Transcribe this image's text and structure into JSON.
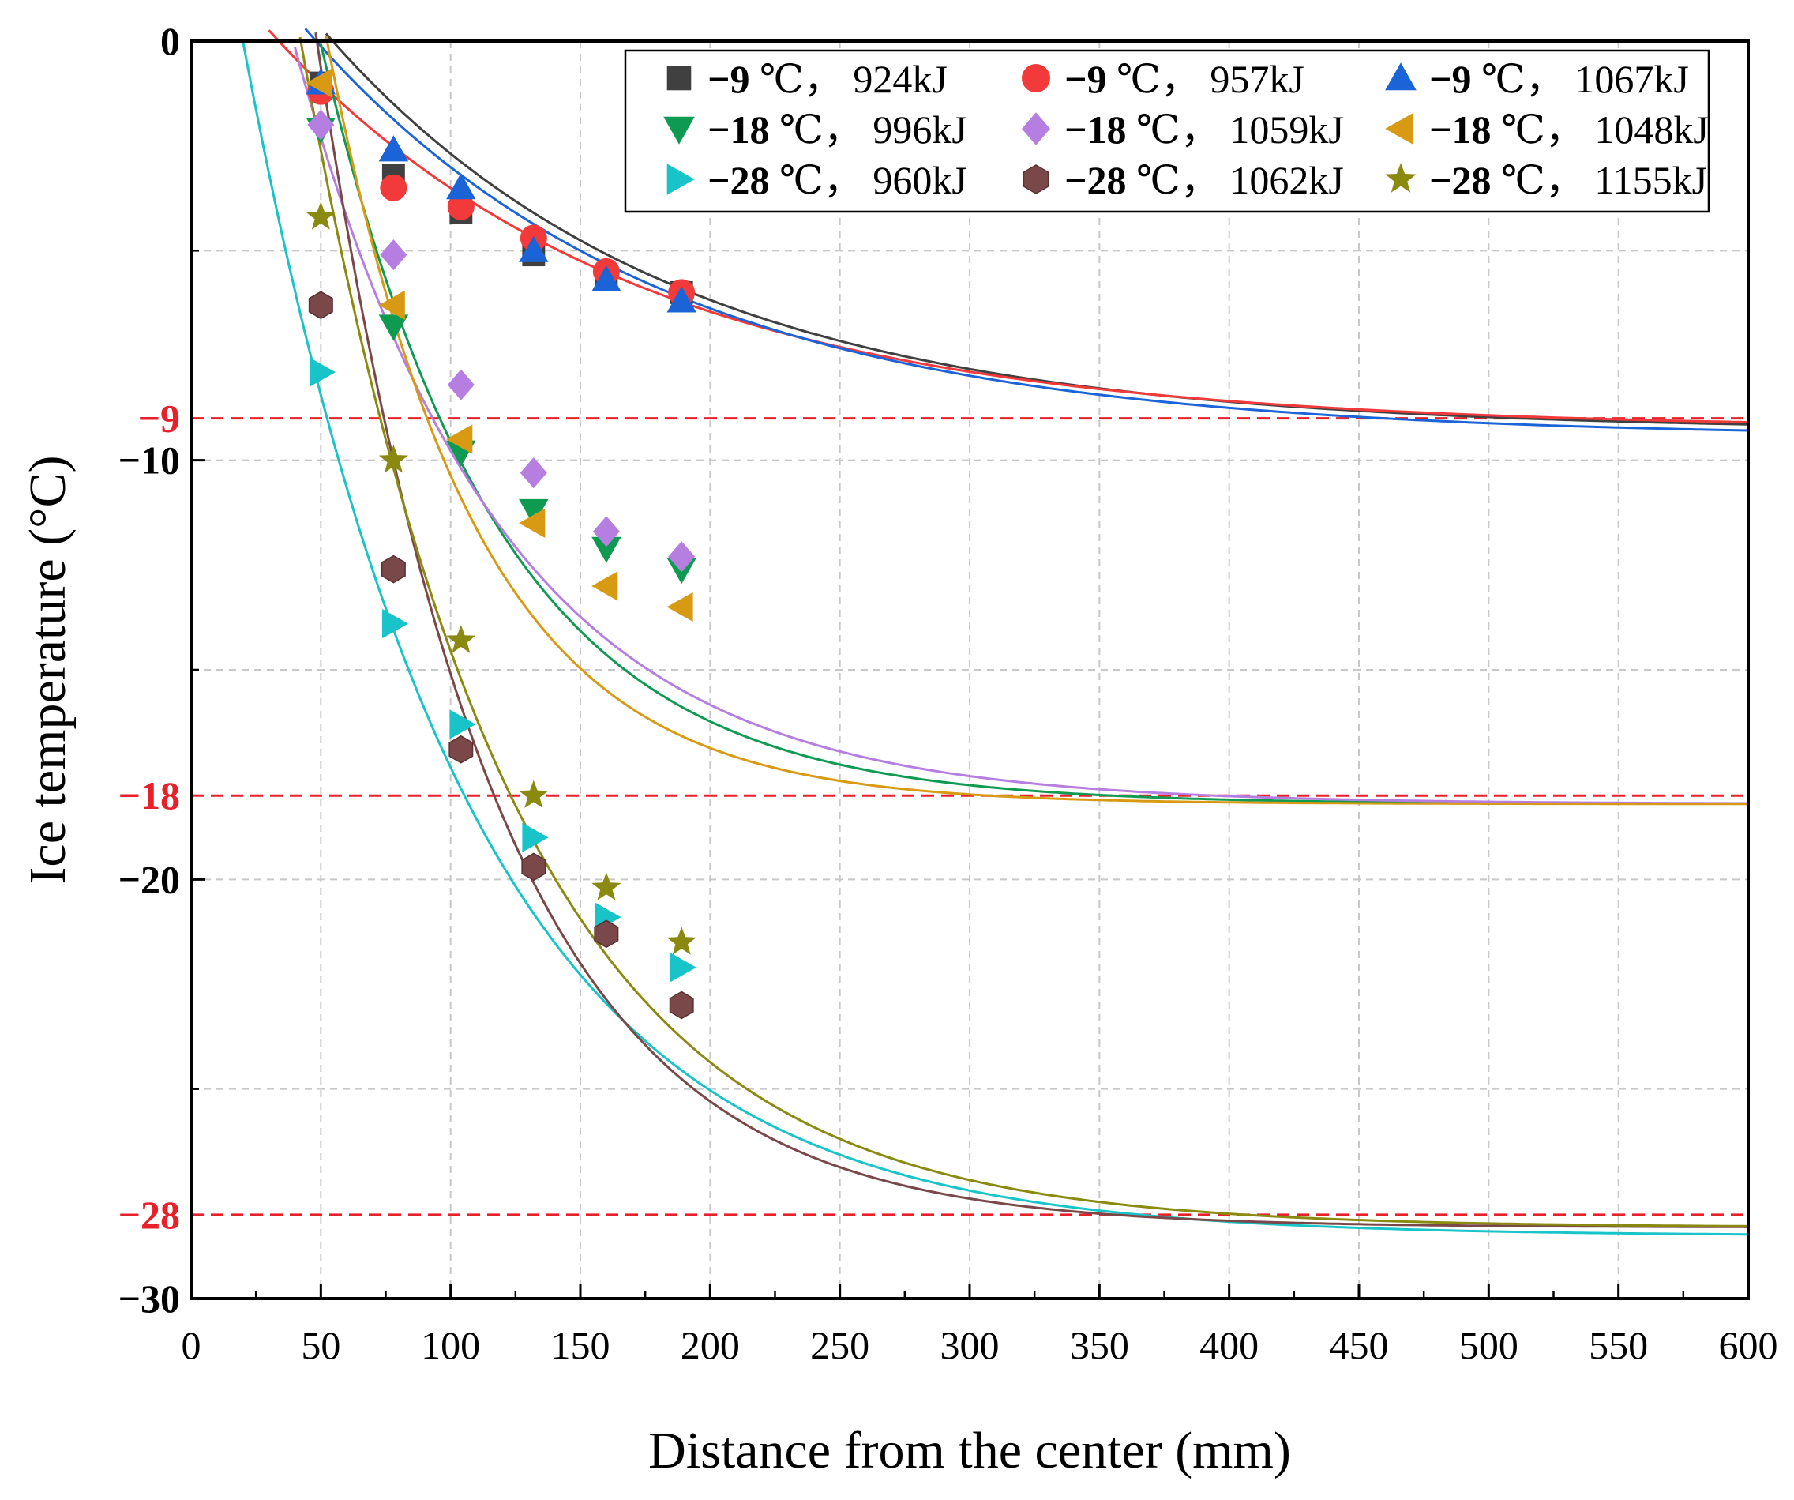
{
  "chart_data": {
    "type": "scatter",
    "title": "",
    "xlabel": "Distance from the center (mm)",
    "ylabel": "Ice temperature (°C)",
    "xlim": [
      0,
      600
    ],
    "ylim": [
      -30,
      0
    ],
    "x_ticks": [
      0,
      50,
      100,
      150,
      200,
      250,
      300,
      350,
      400,
      450,
      500,
      550,
      600
    ],
    "y_ticks": [
      {
        "value": 0,
        "label": "0",
        "color": "#000000"
      },
      {
        "value": -9,
        "label": "−9",
        "color": "#e8202a"
      },
      {
        "value": -10,
        "label": "−10",
        "color": "#000000"
      },
      {
        "value": -18,
        "label": "−18",
        "color": "#e8202a"
      },
      {
        "value": -20,
        "label": "−20",
        "color": "#000000"
      },
      {
        "value": -28,
        "label": "−28",
        "color": "#e8202a"
      },
      {
        "value": -30,
        "label": "−30",
        "color": "#000000"
      }
    ],
    "grid": true,
    "legend_position": "top-right",
    "reference_lines": [
      {
        "y": -9,
        "color": "#e8202a",
        "style": "dashed"
      },
      {
        "y": -18,
        "color": "#e8202a",
        "style": "dashed"
      },
      {
        "y": -28,
        "color": "#e8202a",
        "style": "dashed"
      }
    ],
    "series": [
      {
        "temp": "−9",
        "unit": " ℃，",
        "energy": "924kJ",
        "marker": "square",
        "color": "#404040",
        "x": [
          50,
          78,
          104,
          132,
          160,
          189
        ],
        "y": [
          -1.0,
          -3.2,
          -4.1,
          -5.1,
          -5.6,
          -6.0
        ],
        "fit": {
          "T_inf": -9.3,
          "A": 14.0,
          "k": 0.0075
        }
      },
      {
        "temp": "−9",
        "unit": " ℃，",
        "energy": "957kJ",
        "marker": "circle",
        "color": "#f23a3a",
        "x": [
          50,
          78,
          104,
          132,
          160,
          189
        ],
        "y": [
          -1.2,
          -3.5,
          -3.95,
          -4.7,
          -5.5,
          -6.0
        ],
        "fit": {
          "T_inf": -9.25,
          "A": 11.8,
          "k": 0.0072
        }
      },
      {
        "temp": "−9",
        "unit": " ℃，",
        "energy": "1067kJ",
        "marker": "triangle-up",
        "color": "#1a64d8",
        "x": [
          50,
          78,
          104,
          132,
          160,
          189
        ],
        "y": [
          -1.0,
          -2.6,
          -3.5,
          -5.0,
          -5.7,
          -6.2
        ],
        "fit": {
          "T_inf": -9.45,
          "A": 13.5,
          "k": 0.0074
        }
      },
      {
        "temp": "−18",
        "unit": " ℃，",
        "energy": "996kJ",
        "marker": "triangle-down",
        "color": "#0f9a52",
        "x": [
          50,
          78,
          104,
          132,
          160,
          189
        ],
        "y": [
          -2.1,
          -6.8,
          -9.8,
          -11.2,
          -12.1,
          -12.6
        ],
        "fit": {
          "T_inf": -18.2,
          "A": 38.0,
          "k": 0.0148
        }
      },
      {
        "temp": "−18",
        "unit": " ℃，",
        "energy": "1059kJ",
        "marker": "diamond",
        "color": "#b67ee0",
        "x": [
          50,
          78,
          104,
          132,
          160,
          189
        ],
        "y": [
          -2.0,
          -5.1,
          -8.2,
          -10.3,
          -11.7,
          -12.3
        ],
        "fit": {
          "T_inf": -18.2,
          "A": 30.0,
          "k": 0.0127
        }
      },
      {
        "temp": "−18",
        "unit": " ℃，",
        "energy": "1048kJ",
        "marker": "triangle-left",
        "color": "#d89a12",
        "x": [
          50,
          78,
          104,
          132,
          160,
          189
        ],
        "y": [
          -1.0,
          -6.3,
          -9.5,
          -11.5,
          -13.0,
          -13.5
        ],
        "fit": {
          "T_inf": -18.2,
          "A": 46.0,
          "k": 0.0177
        }
      },
      {
        "temp": "−28",
        "unit": " ℃，",
        "energy": "960kJ",
        "marker": "triangle-right",
        "color": "#18c4c8",
        "x": [
          50,
          78,
          104,
          132,
          160,
          189
        ],
        "y": [
          -7.9,
          -13.9,
          -16.3,
          -19.0,
          -20.9,
          -22.1
        ],
        "fit": {
          "T_inf": -28.5,
          "A": 36.0,
          "k": 0.0117
        }
      },
      {
        "temp": "−28",
        "unit": " ℃，",
        "energy": "1062kJ",
        "marker": "hexagon",
        "color": "#7a4848",
        "x": [
          50,
          78,
          104,
          132,
          160,
          189
        ],
        "y": [
          -6.3,
          -12.6,
          -16.9,
          -19.7,
          -21.3,
          -23.0
        ],
        "fit": {
          "T_inf": -28.3,
          "A": 58.0,
          "k": 0.0148
        }
      },
      {
        "temp": "−28",
        "unit": " ℃，",
        "energy": "1155kJ",
        "marker": "star",
        "color": "#8a8a10",
        "x": [
          50,
          78,
          104,
          132,
          160,
          189
        ],
        "y": [
          -4.2,
          -10.0,
          -14.3,
          -18.0,
          -20.2,
          -21.5
        ],
        "fit": {
          "T_inf": -28.3,
          "A": 48.0,
          "k": 0.0125
        }
      }
    ]
  }
}
